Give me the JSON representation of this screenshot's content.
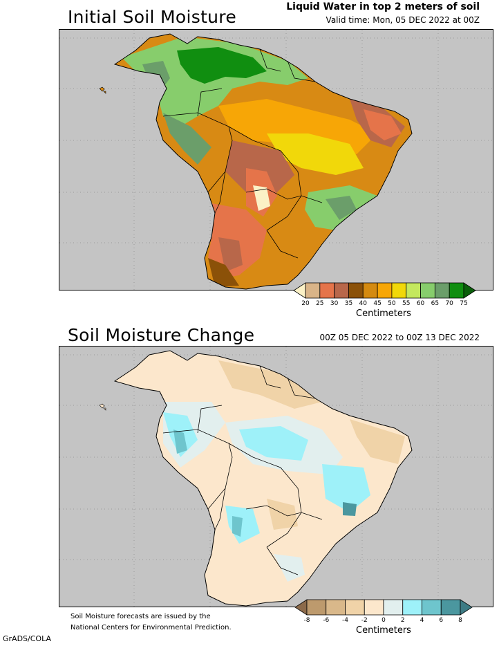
{
  "panel_top": {
    "title": "Initial Soil Moisture",
    "header_line1": "Liquid Water in top 2 meters of soil",
    "header_line2": "Valid time: Mon, 05 DEC 2022 at 00Z",
    "units": "Centimeters",
    "colorbar": {
      "labels": [
        "20",
        "25",
        "30",
        "35",
        "40",
        "45",
        "50",
        "55",
        "60",
        "65",
        "70",
        "75"
      ],
      "colors": [
        "#fbf1c6",
        "#d9b488",
        "#e5744a",
        "#b8674a",
        "#8b5108",
        "#d48a10",
        "#f7a606",
        "#f1d80a",
        "#c4e85e",
        "#87cd6c",
        "#6b9e6a",
        "#108e10",
        "#0b5f0b"
      ]
    }
  },
  "panel_bottom": {
    "title": "Soil Moisture Change",
    "header": "00Z 05 DEC 2022 to 00Z 13 DEC 2022",
    "units": "Centimeters",
    "colorbar": {
      "labels": [
        "-8",
        "-6",
        "-4",
        "-2",
        "0",
        "2",
        "4",
        "6",
        "8"
      ],
      "colors": [
        "#8c6a4a",
        "#bd9a6d",
        "#d9b88a",
        "#f0d3a8",
        "#fce7cc",
        "#e2efee",
        "#9ef1f9",
        "#6ec5cd",
        "#4b979f",
        "#3d7b84"
      ]
    }
  },
  "footer": {
    "line1": "Soil Moisture forecasts are issued by the",
    "line2": "National Centers for Environmental Prediction."
  },
  "credit": "GrADS/COLA",
  "map_colors": {
    "ocean": "#c4c4c4",
    "land_base_top": "#d88a14",
    "land_base_bottom": "#fbe3c4"
  }
}
